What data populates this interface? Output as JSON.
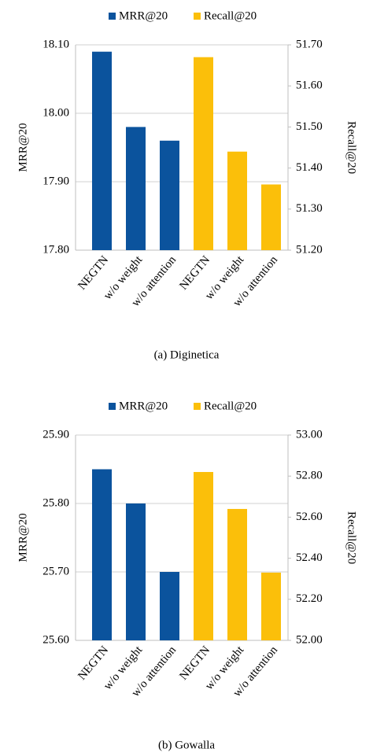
{
  "chart_data": [
    {
      "type": "bar",
      "caption": "(a) Diginetica",
      "ylabel": "MRR@20",
      "y2label": "Recall@20",
      "categories": [
        "NEGTN",
        "w/o weight",
        "w/o attention",
        "NEGTN",
        "w/o weight",
        "w/o attention"
      ],
      "series": [
        {
          "name": "MRR@20",
          "color": "#0b539d",
          "values": [
            18.09,
            17.98,
            17.96,
            null,
            null,
            null
          ]
        },
        {
          "name": "Recall@20",
          "color": "#fbbf0a",
          "axis": "y2",
          "values": [
            null,
            null,
            null,
            51.67,
            51.44,
            51.36
          ]
        }
      ],
      "ylim": [
        17.8,
        18.1
      ],
      "yticks": [
        {
          "value": 17.8,
          "label": "17.80"
        },
        {
          "value": 17.9,
          "label": "17.90"
        },
        {
          "value": 18.0,
          "label": "18.00"
        },
        {
          "value": 18.1,
          "label": "18.10"
        }
      ],
      "y2lim": [
        51.2,
        51.7
      ],
      "y2ticks": [
        {
          "value": 51.2,
          "label": "51.20"
        },
        {
          "value": 51.3,
          "label": "51.30"
        },
        {
          "value": 51.4,
          "label": "51.40"
        },
        {
          "value": 51.5,
          "label": "51.50"
        },
        {
          "value": 51.6,
          "label": "51.60"
        },
        {
          "value": 51.7,
          "label": "51.70"
        }
      ],
      "grid": true,
      "legend": "top"
    },
    {
      "type": "bar",
      "caption": "(b) Gowalla",
      "ylabel": "MRR@20",
      "y2label": "Recall@20",
      "categories": [
        "NEGTN",
        "w/o weight",
        "w/o attention",
        "NEGTN",
        "w/o weight",
        "w/o attention"
      ],
      "series": [
        {
          "name": "MRR@20",
          "color": "#0b539d",
          "values": [
            25.85,
            25.8,
            25.7,
            null,
            null,
            null
          ]
        },
        {
          "name": "Recall@20",
          "color": "#fbbf0a",
          "axis": "y2",
          "values": [
            null,
            null,
            null,
            52.82,
            52.64,
            52.33
          ]
        }
      ],
      "ylim": [
        25.6,
        25.9
      ],
      "yticks": [
        {
          "value": 25.6,
          "label": "25.60"
        },
        {
          "value": 25.7,
          "label": "25.70"
        },
        {
          "value": 25.8,
          "label": "25.80"
        },
        {
          "value": 25.9,
          "label": "25.90"
        }
      ],
      "y2lim": [
        52.0,
        53.0
      ],
      "y2ticks": [
        {
          "value": 52.0,
          "label": "52.00"
        },
        {
          "value": 52.2,
          "label": "52.20"
        },
        {
          "value": 52.4,
          "label": "52.40"
        },
        {
          "value": 52.6,
          "label": "52.60"
        },
        {
          "value": 52.8,
          "label": "52.80"
        },
        {
          "value": 53.0,
          "label": "53.00"
        }
      ],
      "grid": true,
      "legend": "top"
    }
  ]
}
